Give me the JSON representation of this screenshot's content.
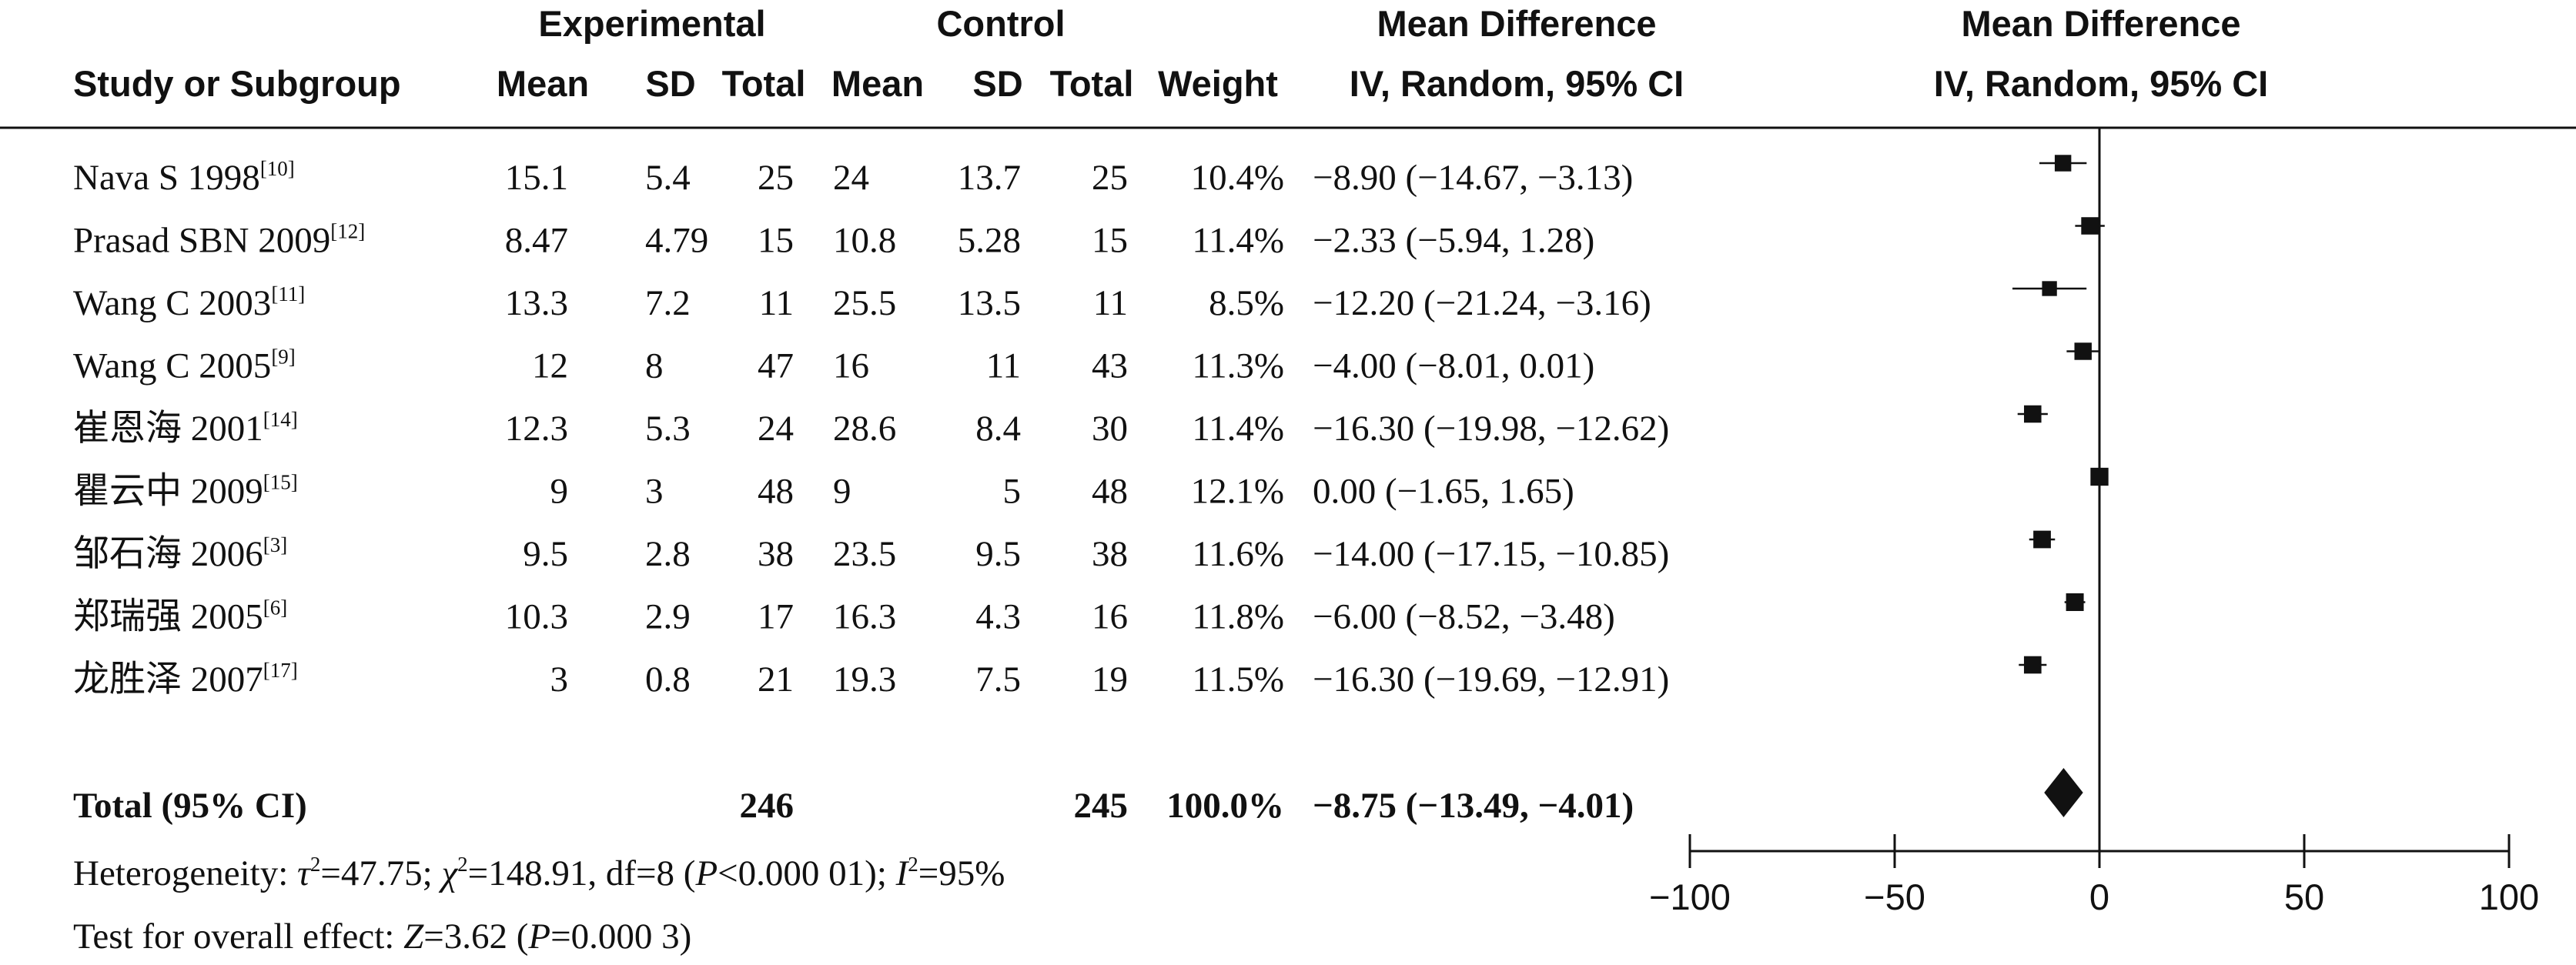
{
  "header": {
    "group_experimental": "Experimental",
    "group_control": "Control",
    "effect_title_table": "Mean Difference",
    "effect_title_plot": "Mean Difference",
    "col_study": "Study or Subgroup",
    "col_mean_e": "Mean",
    "col_sd_e": "SD",
    "col_total_e": "Total",
    "col_mean_c": "Mean",
    "col_sd_c": "SD",
    "col_total_c": "Total",
    "col_weight": "Weight",
    "col_ci": "IV, Random, 95% CI",
    "plot_method": "IV, Random, 95% CI"
  },
  "rows": [
    {
      "name": "Nava S 1998",
      "ref": "[10]",
      "mean_e": "15.1",
      "sd_e": "5.4",
      "total_e": "25",
      "mean_c": "24",
      "sd_c": "13.7",
      "total_c": "25",
      "weight": "10.4%",
      "ci": "−8.90 (−14.67, −3.13)"
    },
    {
      "name": "Prasad SBN 2009",
      "ref": "[12]",
      "mean_e": "8.47",
      "sd_e": "4.79",
      "total_e": "15",
      "mean_c": "10.8",
      "sd_c": "5.28",
      "total_c": "15",
      "weight": "11.4%",
      "ci": "−2.33 (−5.94, 1.28)"
    },
    {
      "name": "Wang C 2003",
      "ref": "[11]",
      "mean_e": "13.3",
      "sd_e": "7.2",
      "total_e": "11",
      "mean_c": "25.5",
      "sd_c": "13.5",
      "total_c": "11",
      "weight": "8.5%",
      "ci": "−12.20 (−21.24, −3.16)"
    },
    {
      "name": "Wang C 2005",
      "ref": "[9]",
      "mean_e": "12",
      "sd_e": "8",
      "total_e": "47",
      "mean_c": "16",
      "sd_c": "11",
      "total_c": "43",
      "weight": "11.3%",
      "ci": "−4.00 (−8.01, 0.01)"
    },
    {
      "name": "崔恩海 2001",
      "ref": "[14]",
      "mean_e": "12.3",
      "sd_e": "5.3",
      "total_e": "24",
      "mean_c": "28.6",
      "sd_c": "8.4",
      "total_c": "30",
      "weight": "11.4%",
      "ci": "−16.30 (−19.98, −12.62)"
    },
    {
      "name": "瞿云中 2009",
      "ref": "[15]",
      "mean_e": "9",
      "sd_e": "3",
      "total_e": "48",
      "mean_c": "9",
      "sd_c": "5",
      "total_c": "48",
      "weight": "12.1%",
      "ci": "0.00 (−1.65, 1.65)"
    },
    {
      "name": "邹石海 2006",
      "ref": "[3]",
      "mean_e": "9.5",
      "sd_e": "2.8",
      "total_e": "38",
      "mean_c": "23.5",
      "sd_c": "9.5",
      "total_c": "38",
      "weight": "11.6%",
      "ci": "−14.00 (−17.15, −10.85)"
    },
    {
      "name": "郑瑞强 2005",
      "ref": "[6]",
      "mean_e": "10.3",
      "sd_e": "2.9",
      "total_e": "17",
      "mean_c": "16.3",
      "sd_c": "4.3",
      "total_c": "16",
      "weight": "11.8%",
      "ci": "−6.00 (−8.52, −3.48)"
    },
    {
      "name": "龙胜泽 2007",
      "ref": "[17]",
      "mean_e": "3",
      "sd_e": "0.8",
      "total_e": "21",
      "mean_c": "19.3",
      "sd_c": "7.5",
      "total_c": "19",
      "weight": "11.5%",
      "ci": "−16.30 (−19.69, −12.91)"
    }
  ],
  "total": {
    "label": "Total (95% CI)",
    "total_e": "246",
    "total_c": "245",
    "weight": "100.0%",
    "ci": "−8.75 (−13.49, −4.01)"
  },
  "footer": {
    "heterogeneity": {
      "prefix": "Heterogeneity: ",
      "tau_sym": "τ",
      "tau_rest": "=47.75; ",
      "chi_sym": "χ",
      "chi_rest": "=148.91, df=8 (",
      "p_sym": "P",
      "p_rest": "<0.000 01); ",
      "i_sym": "I",
      "i_rest": "=95%",
      "sup": "2"
    },
    "overall": {
      "prefix": "Test for overall effect: ",
      "z_sym": "Z",
      "z_rest": "=3.62 (",
      "p_sym": "P",
      "p_rest": "=0.000 3)"
    }
  },
  "chart_data": {
    "type": "forest",
    "xlim": [
      -100,
      100
    ],
    "xticks": [
      -100,
      -50,
      0,
      50,
      100
    ],
    "x_tick_labels": [
      "−100",
      "−50",
      "0",
      "50",
      "100"
    ],
    "reference_line": 0,
    "studies": [
      {
        "name": "Nava S 1998",
        "md": -8.9,
        "lower": -14.67,
        "upper": -3.13,
        "weight": 10.4
      },
      {
        "name": "Prasad SBN 2009",
        "md": -2.33,
        "lower": -5.94,
        "upper": 1.28,
        "weight": 11.4
      },
      {
        "name": "Wang C 2003",
        "md": -12.2,
        "lower": -21.24,
        "upper": -3.16,
        "weight": 8.5
      },
      {
        "name": "Wang C 2005",
        "md": -4.0,
        "lower": -8.01,
        "upper": 0.01,
        "weight": 11.3
      },
      {
        "name": "崔恩海 2001",
        "md": -16.3,
        "lower": -19.98,
        "upper": -12.62,
        "weight": 11.4
      },
      {
        "name": "瞿云中 2009",
        "md": 0.0,
        "lower": -1.65,
        "upper": 1.65,
        "weight": 12.1
      },
      {
        "name": "邹石海 2006",
        "md": -14.0,
        "lower": -17.15,
        "upper": -10.85,
        "weight": 11.6
      },
      {
        "name": "郑瑞强 2005",
        "md": -6.0,
        "lower": -8.52,
        "upper": -3.48,
        "weight": 11.8
      },
      {
        "name": "龙胜泽 2007",
        "md": -16.3,
        "lower": -19.69,
        "upper": -12.91,
        "weight": 11.5
      }
    ],
    "pooled": {
      "md": -8.75,
      "lower": -13.49,
      "upper": -4.01
    }
  }
}
